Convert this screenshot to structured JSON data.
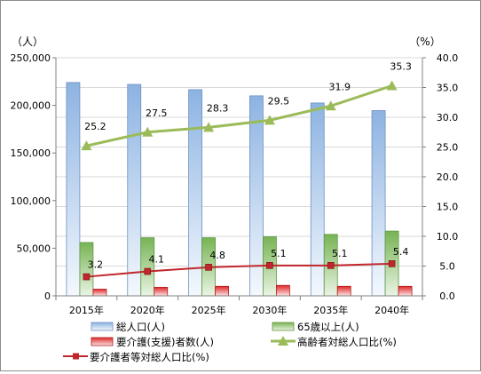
{
  "chart_data": {
    "type": "bar",
    "categories": [
      "2015年",
      "2020年",
      "2025年",
      "2030年",
      "2035年",
      "2040年"
    ],
    "left_axis": {
      "unit_label": "（人）",
      "min": 0,
      "max": 250000,
      "step": 50000,
      "tick_labels": [
        "0",
        "50,000",
        "100,000",
        "150,000",
        "200,000",
        "250,000"
      ]
    },
    "right_axis": {
      "unit_label": "（%）",
      "min": 0,
      "max": 40,
      "step": 5,
      "tick_labels": [
        "0.0",
        "5.0",
        "10.0",
        "15.0",
        "20.0",
        "25.0",
        "30.0",
        "35.0",
        "40.0"
      ]
    },
    "grid": true,
    "legend_position": "bottom",
    "series": [
      {
        "name": "総人口(人)",
        "type": "bar",
        "axis": "left",
        "color": "#8db3e2",
        "values": [
          224000,
          222000,
          216500,
          210000,
          202500,
          194500
        ]
      },
      {
        "name": "65歳以上(人)",
        "type": "bar",
        "axis": "left",
        "color": "#77b354",
        "values": [
          56000,
          61000,
          61000,
          62000,
          64500,
          68000
        ]
      },
      {
        "name": "要介護(支援)者数(人)",
        "type": "bar",
        "axis": "left",
        "color": "#e03030",
        "values": [
          7000,
          9000,
          10000,
          11000,
          10000,
          10000
        ]
      },
      {
        "name": "高齢者対総人口比(%)",
        "type": "line",
        "axis": "right",
        "color": "#9bbb59",
        "values": [
          25.2,
          27.5,
          28.3,
          29.5,
          31.9,
          35.3
        ],
        "labels": [
          "25.2",
          "27.5",
          "28.3",
          "29.5",
          "31.9",
          "35.3"
        ]
      },
      {
        "name": "要介護者等対総人口比(%)",
        "type": "line",
        "axis": "right",
        "color": "#c0272d",
        "values": [
          3.2,
          4.1,
          4.8,
          5.1,
          5.1,
          5.4
        ],
        "labels": [
          "3.2",
          "4.1",
          "4.8",
          "5.1",
          "5.1",
          "5.4"
        ]
      }
    ]
  }
}
